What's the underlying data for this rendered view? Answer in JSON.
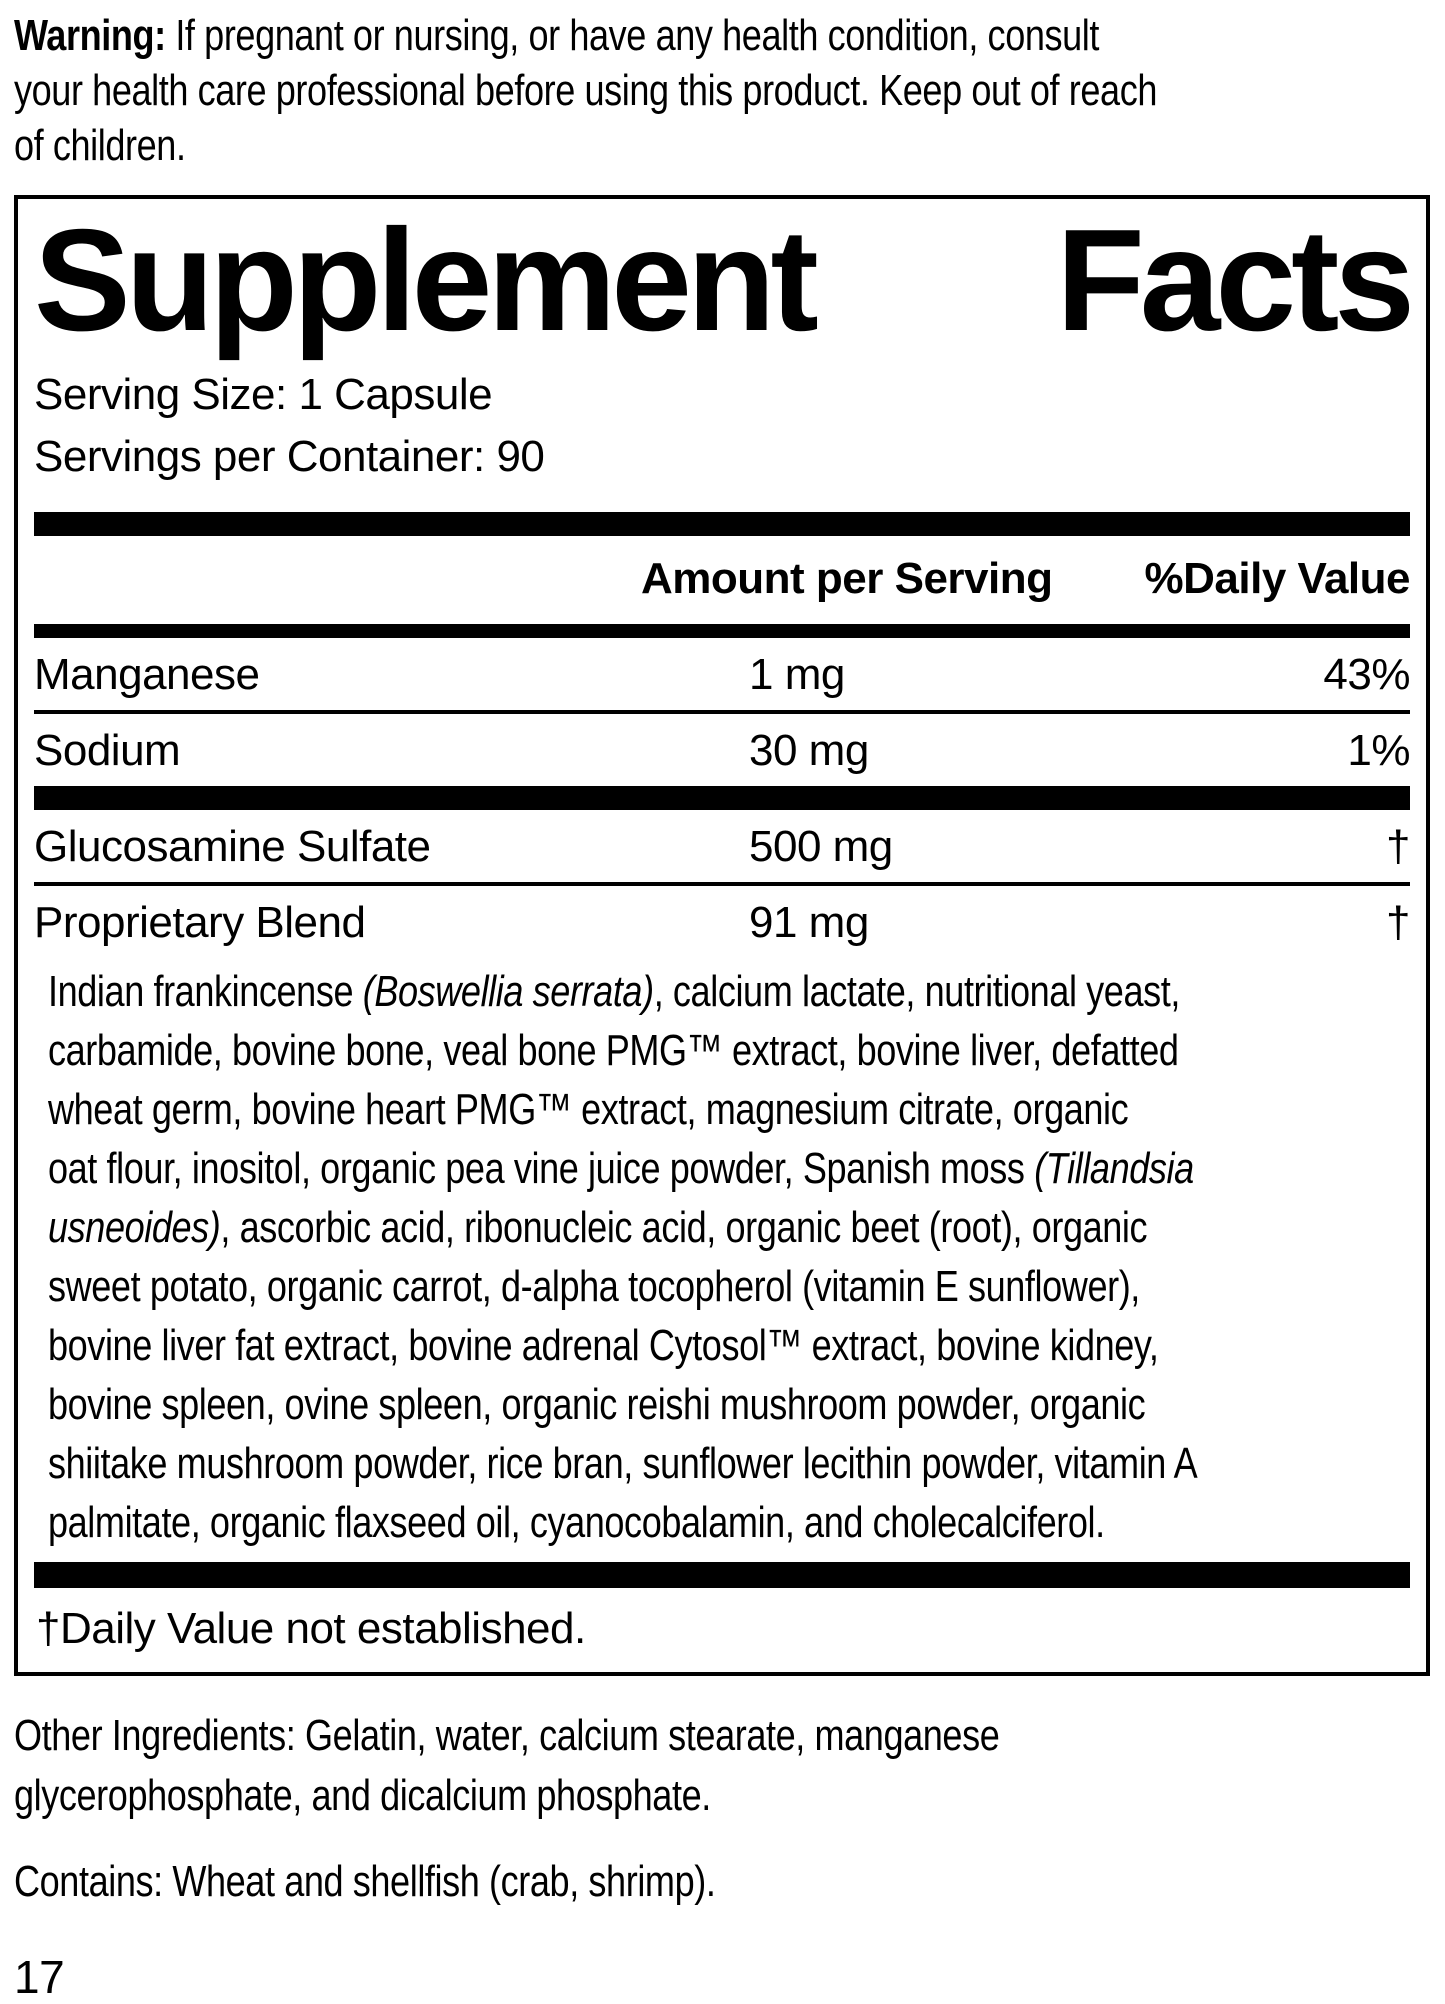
{
  "colors": {
    "text": "#000000",
    "background": "#ffffff",
    "rule": "#000000"
  },
  "warning": {
    "lines": [
      [
        {
          "t": "Warning:",
          "b": 1
        },
        {
          "t": " If pregnant or nursing, or have any health condition, consult"
        }
      ],
      [
        {
          "t": "your health care professional before using this product. Keep out of reach"
        }
      ],
      [
        {
          "t": "of children."
        }
      ]
    ]
  },
  "panel": {
    "title": {
      "left": "Supplement",
      "right": "Facts"
    },
    "serving_size": "Serving Size: 1 Capsule",
    "servings_per_container": "Servings per Container: 90",
    "columns": {
      "amount": "Amount per Serving",
      "daily_value": "%Daily Value"
    },
    "rows": [
      {
        "name": "Manganese",
        "amount": "1 mg",
        "dv": "43%",
        "separator": "thin"
      },
      {
        "name": "Sodium",
        "amount": "30 mg",
        "dv": "1%",
        "separator": "thick"
      },
      {
        "name": "Glucosamine Sulfate",
        "amount": "500 mg",
        "dv": "†",
        "separator": "thin"
      },
      {
        "name": "Proprietary Blend",
        "amount": "91 mg",
        "dv": "†",
        "separator": "none"
      }
    ],
    "blend_lines": [
      [
        {
          "t": "Indian frankincense "
        },
        {
          "t": "(Boswellia serrata)",
          "i": 1
        },
        {
          "t": ", calcium lactate, nutritional yeast,"
        }
      ],
      [
        {
          "t": "carbamide, bovine bone, veal bone PMG™ extract, bovine liver, defatted"
        }
      ],
      [
        {
          "t": "wheat germ, bovine heart PMG™ extract, magnesium citrate, organic"
        }
      ],
      [
        {
          "t": "oat flour, inositol, organic pea vine juice powder, Spanish moss "
        },
        {
          "t": "(Tillandsia",
          "i": 1
        }
      ],
      [
        {
          "t": "usneoides)",
          "i": 1
        },
        {
          "t": ", ascorbic acid, ribonucleic acid, organic beet (root), organic"
        }
      ],
      [
        {
          "t": "sweet potato, organic carrot, d-alpha tocopherol (vitamin E sunflower),"
        }
      ],
      [
        {
          "t": "bovine liver fat extract, bovine adrenal Cytosol™ extract, bovine kidney,"
        }
      ],
      [
        {
          "t": "bovine spleen, ovine spleen, organic reishi mushroom powder, organic"
        }
      ],
      [
        {
          "t": "shiitake mushroom powder, rice bran, sunflower lecithin powder, vitamin A"
        }
      ],
      [
        {
          "t": "palmitate, organic flaxseed oil, cyanocobalamin, and cholecalciferol."
        }
      ]
    ],
    "footnote": "†Daily Value not established."
  },
  "other_ingredients": {
    "lines": [
      [
        {
          "t": "Other Ingredients: Gelatin, water, calcium stearate, manganese"
        }
      ],
      [
        {
          "t": "glycerophosphate, and dicalcium phosphate."
        }
      ]
    ]
  },
  "contains": {
    "lines": [
      [
        {
          "t": "Contains: Wheat and shellfish (crab, shrimp)."
        }
      ]
    ]
  },
  "page": {
    "number": "17"
  }
}
